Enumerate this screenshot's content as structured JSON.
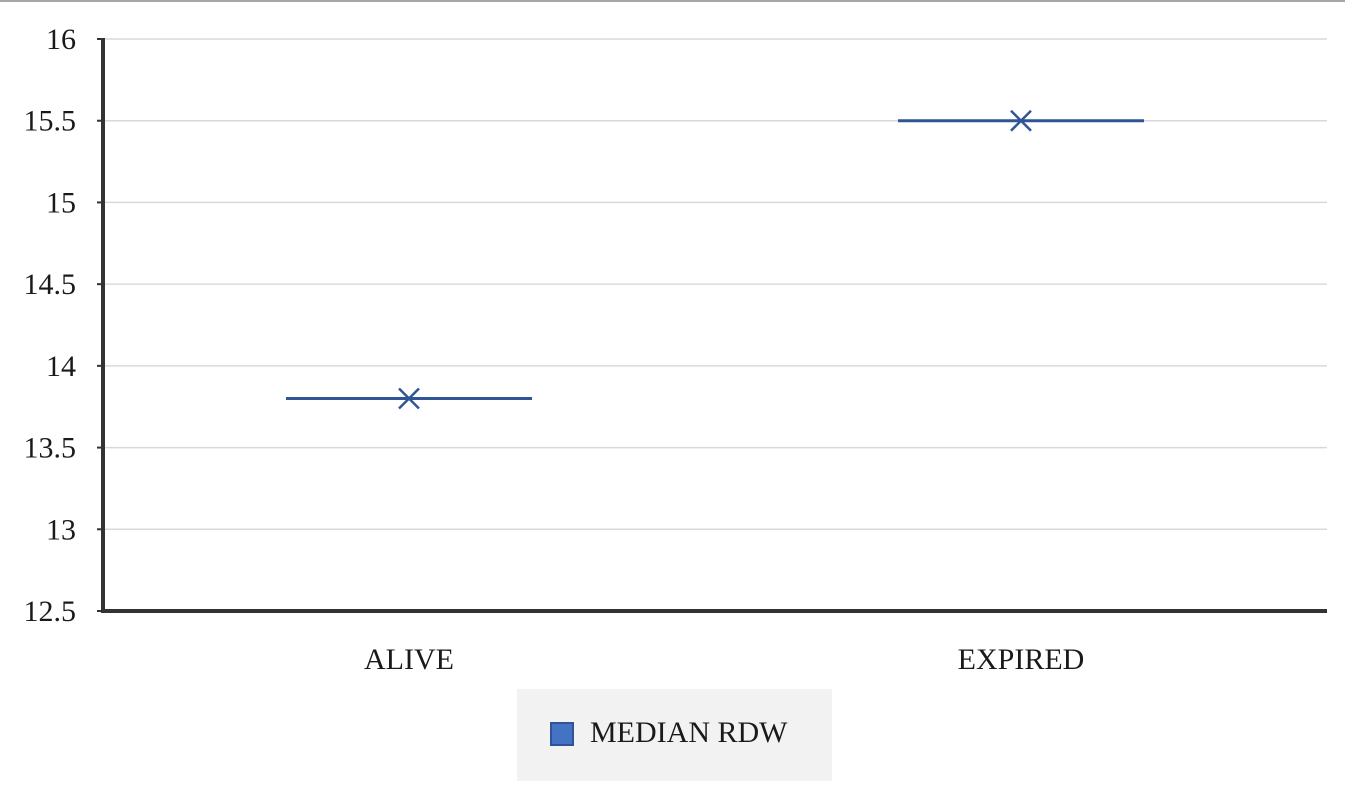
{
  "chart_data": {
    "type": "box",
    "categories": [
      "ALIVE",
      "EXPIRED"
    ],
    "series": [
      {
        "name": "MEDIAN RDW",
        "color": "#2f5597",
        "legend_fill": "#4472c4",
        "values": [
          13.8,
          15.5
        ]
      }
    ],
    "ylim": [
      12.5,
      16
    ],
    "yticks": [
      "12.5",
      "13",
      "13.5",
      "14",
      "14.5",
      "15",
      "15.5",
      "16"
    ],
    "grid": true,
    "legend_position": "bottom",
    "marker": "x"
  }
}
